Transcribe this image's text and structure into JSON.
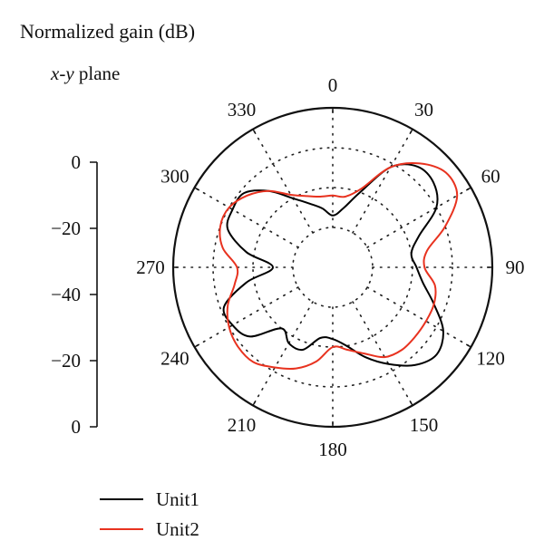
{
  "chart_data": {
    "type": "polar-line",
    "title": "Normalized gain (dB)",
    "subtitle": {
      "italic": "x-y",
      "rest": " plane"
    },
    "radial_axis": {
      "tick_labels": [
        "0",
        "−20",
        "−40",
        "−20",
        "0"
      ],
      "range_db": [
        -40,
        0
      ]
    },
    "angular_axis": {
      "tick_labels": [
        "0",
        "30",
        "60",
        "90",
        "120",
        "150",
        "180",
        "210",
        "240",
        "270",
        "300",
        "330"
      ],
      "direction": "clockwise",
      "zero_at": "top"
    },
    "grid": true,
    "legend_position": "bottom-left",
    "series": [
      {
        "name": "Unit1",
        "color": "#000000",
        "angles_deg": [
          0,
          10,
          20,
          30,
          40,
          50,
          60,
          70,
          80,
          90,
          100,
          110,
          120,
          130,
          140,
          150,
          160,
          170,
          180,
          190,
          200,
          210,
          220,
          230,
          240,
          250,
          260,
          270,
          280,
          290,
          300,
          310,
          320,
          330,
          340,
          350
        ],
        "gain_db": [
          -27,
          -25,
          -20,
          -11,
          -7,
          -7,
          -10,
          -17,
          -20,
          -19,
          -17,
          -13,
          -8,
          -6,
          -8,
          -12,
          -16,
          -20,
          -22,
          -22,
          -18,
          -18,
          -20,
          -13,
          -11,
          -11,
          -18,
          -25,
          -18,
          -12,
          -11,
          -11,
          -15,
          -20,
          -23,
          -25
        ]
      },
      {
        "name": "Unit2",
        "color": "#e8321f",
        "angles_deg": [
          0,
          10,
          20,
          30,
          40,
          50,
          60,
          70,
          80,
          90,
          100,
          110,
          120,
          130,
          140,
          150,
          160,
          170,
          180,
          190,
          200,
          210,
          220,
          230,
          240,
          250,
          260,
          270,
          280,
          290,
          300,
          310,
          320,
          330,
          340,
          350
        ],
        "gain_db": [
          -22,
          -22,
          -19,
          -11,
          -6,
          -3,
          -4,
          -10,
          -16,
          -17,
          -14,
          -13,
          -13,
          -13,
          -13,
          -14,
          -17,
          -19,
          -20,
          -16,
          -13,
          -11,
          -9,
          -9,
          -10,
          -12,
          -15,
          -16,
          -12,
          -10,
          -10,
          -12,
          -15,
          -19,
          -21,
          -22
        ]
      }
    ],
    "legend": [
      {
        "label": "Unit1",
        "color": "#000000"
      },
      {
        "label": "Unit2",
        "color": "#e8321f"
      }
    ]
  }
}
